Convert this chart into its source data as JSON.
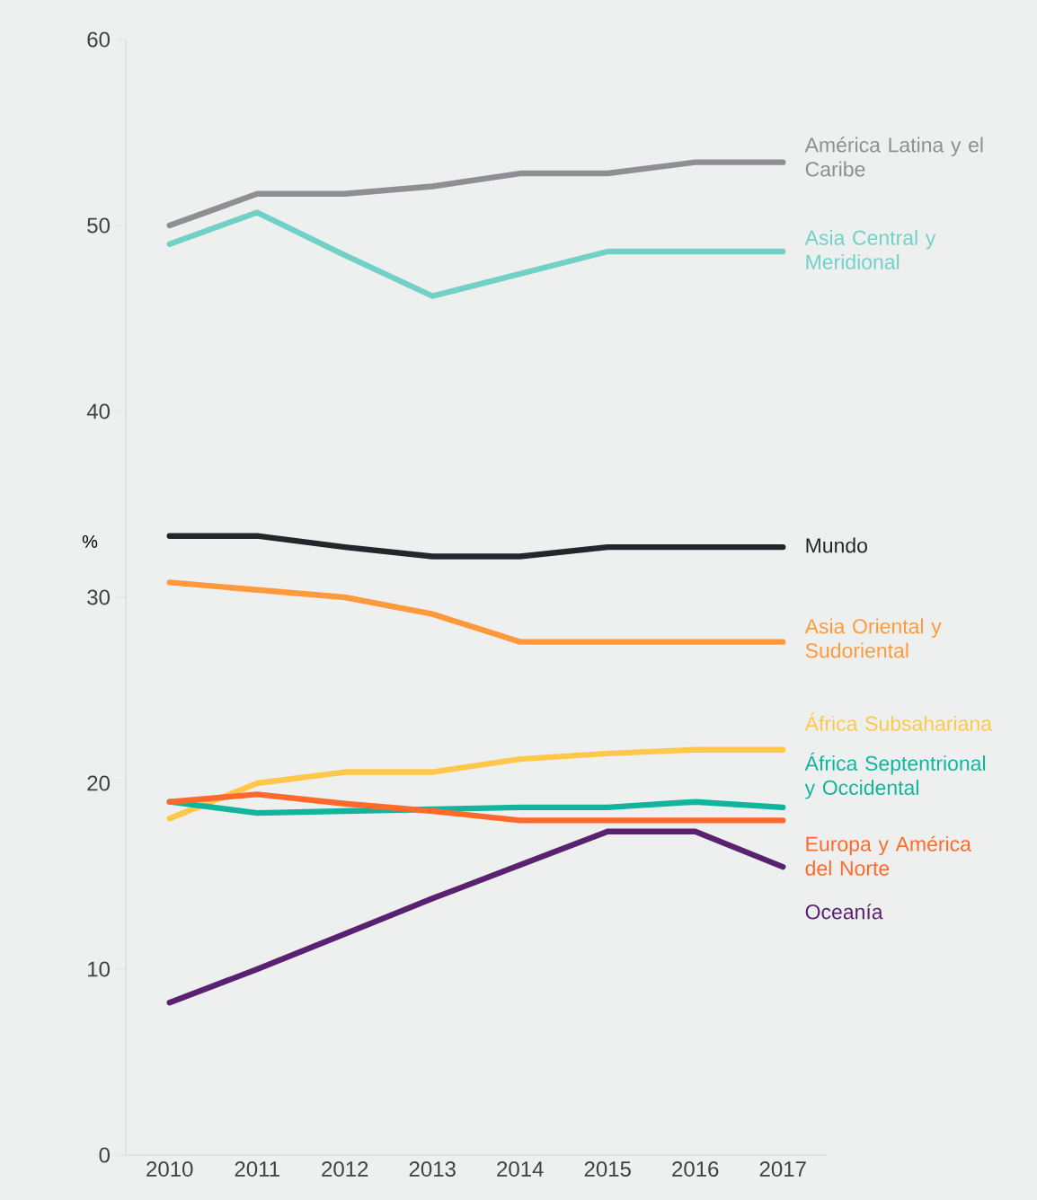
{
  "chart_data": {
    "type": "line",
    "ylabel": "%",
    "x": [
      2010,
      2011,
      2012,
      2013,
      2014,
      2015,
      2016,
      2017
    ],
    "xlim": [
      2009.5,
      2017.5
    ],
    "xticks": [
      2010,
      2011,
      2012,
      2013,
      2014,
      2015,
      2016,
      2017
    ],
    "ylim": [
      0,
      60
    ],
    "yticks": [
      0,
      10,
      20,
      30,
      40,
      50,
      60
    ],
    "grid": false,
    "marker": "none",
    "line_style": "solid",
    "series": [
      {
        "name": "América Latina y el Caribe",
        "color": "#8e8e93",
        "values": [
          50.0,
          51.7,
          51.7,
          52.1,
          52.8,
          52.8,
          53.4,
          53.4
        ]
      },
      {
        "name": "Asia Central y Meridional",
        "color": "#72d1c6",
        "values": [
          49.0,
          50.7,
          48.4,
          46.2,
          47.4,
          48.6,
          48.6,
          48.6
        ]
      },
      {
        "name": "Mundo",
        "color": "#25262b",
        "values": [
          33.3,
          33.3,
          32.7,
          32.2,
          32.2,
          32.7,
          32.7,
          32.7
        ]
      },
      {
        "name": "Asia Oriental y Sudoriental",
        "color": "#ff9a3c",
        "values": [
          30.8,
          30.4,
          30.0,
          29.1,
          27.6,
          27.6,
          27.6,
          27.6
        ]
      },
      {
        "name": "África Subsahariana",
        "color": "#ffc84a",
        "values": [
          18.1,
          20.0,
          20.6,
          20.6,
          21.3,
          21.6,
          21.8,
          21.8
        ]
      },
      {
        "name": "África Septentrional y Occidental",
        "color": "#12b59c",
        "values": [
          19.0,
          18.4,
          18.5,
          18.6,
          18.7,
          18.7,
          19.0,
          18.7
        ]
      },
      {
        "name": "Europa y América del Norte",
        "color": "#ff6a2c",
        "values": [
          19.0,
          19.4,
          18.9,
          18.5,
          18.0,
          18.0,
          18.0,
          18.0
        ]
      },
      {
        "name": "Oceanía",
        "color": "#5a2170",
        "values": [
          8.2,
          10.0,
          11.9,
          13.8,
          15.6,
          17.4,
          17.4,
          15.5
        ]
      }
    ]
  }
}
